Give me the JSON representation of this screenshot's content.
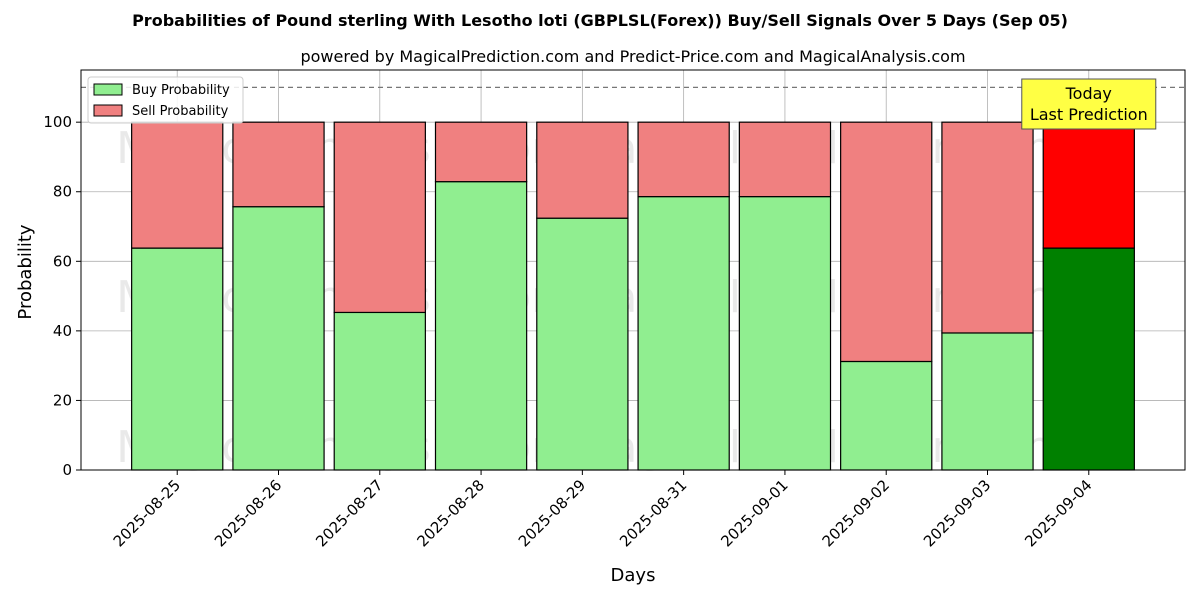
{
  "chart_data": {
    "type": "bar",
    "stacked": true,
    "title": "Probabilities of Pound sterling With Lesotho loti (GBPLSL(Forex)) Buy/Sell Signals Over 5 Days (Sep 05)",
    "subtitle": "powered by MagicalPrediction.com and Predict-Price.com and MagicalAnalysis.com",
    "xlabel": "Days",
    "ylabel": "Probability",
    "ylim": [
      0,
      115
    ],
    "yticks": [
      0,
      20,
      40,
      60,
      80,
      100
    ],
    "grid": true,
    "legend_position": "top-left",
    "reference_line": 110,
    "categories": [
      "2025-08-25",
      "2025-08-26",
      "2025-08-27",
      "2025-08-28",
      "2025-08-29",
      "2025-08-31",
      "2025-09-01",
      "2025-09-02",
      "2025-09-03",
      "2025-09-04"
    ],
    "series": [
      {
        "name": "Buy Probability",
        "color": "#90ee90",
        "highlight_color": "#008000",
        "values": [
          63.8,
          75.7,
          45.3,
          82.9,
          72.4,
          78.6,
          78.6,
          31.2,
          39.4,
          63.8
        ]
      },
      {
        "name": "Sell Probability",
        "color": "#f08080",
        "highlight_color": "#ff0000",
        "values": [
          36.2,
          24.3,
          54.7,
          17.1,
          27.6,
          21.4,
          21.4,
          68.8,
          60.6,
          36.2
        ]
      }
    ],
    "highlight_index": 9,
    "annotation": {
      "lines": [
        "Today",
        "Last Prediction"
      ],
      "color": "#ffff44"
    },
    "watermarks": [
      "MagicalAnalysis.com",
      "MagicalPrediction.com",
      "MagicalAnalysis.com",
      "MagicalPrediction.com",
      "MagicalAnalysis.com",
      "MagicalPrediction.com"
    ]
  }
}
